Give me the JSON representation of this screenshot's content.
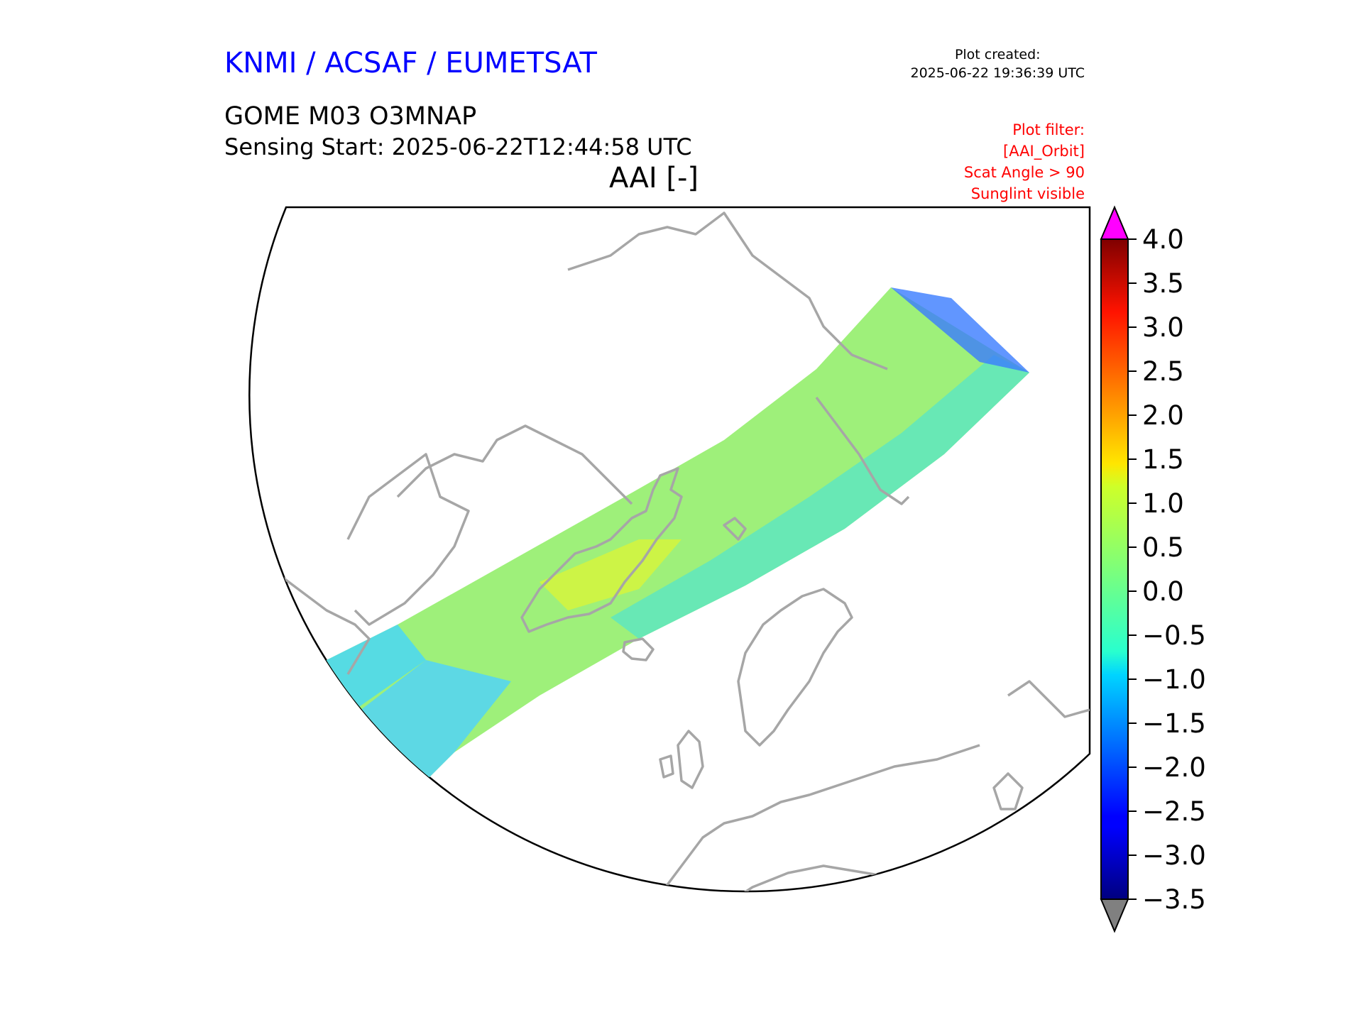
{
  "header": {
    "agency": "KNMI / ACSAF / EUMETSAT",
    "created_label": "Plot created:",
    "created_time": "2025-06-22 19:36:39 UTC",
    "product": "GOME M03 O3MNAP",
    "sensing_start": "Sensing Start: 2025-06-22T12:44:58 UTC",
    "variable": "AAI [-]",
    "filter_lines": [
      "Plot filter:",
      "[AAI_Orbit]",
      "Scat Angle > 90",
      "Sunglint visible"
    ]
  },
  "colors": {
    "agency": "#0000ff",
    "filter": "#ff0000",
    "coastline": "#a6a6a6",
    "over_color": "#ff00ff",
    "under_color": "#808080"
  },
  "colorbar": {
    "min": -3.5,
    "max": 4.0,
    "ticks": [
      "4.0",
      "3.5",
      "3.0",
      "2.5",
      "2.0",
      "1.5",
      "1.0",
      "0.5",
      "0.0",
      "−0.5",
      "−1.0",
      "−1.5",
      "−2.0",
      "−2.5",
      "−3.0",
      "−3.5"
    ],
    "colormap": "jet",
    "extend": "both"
  }
}
